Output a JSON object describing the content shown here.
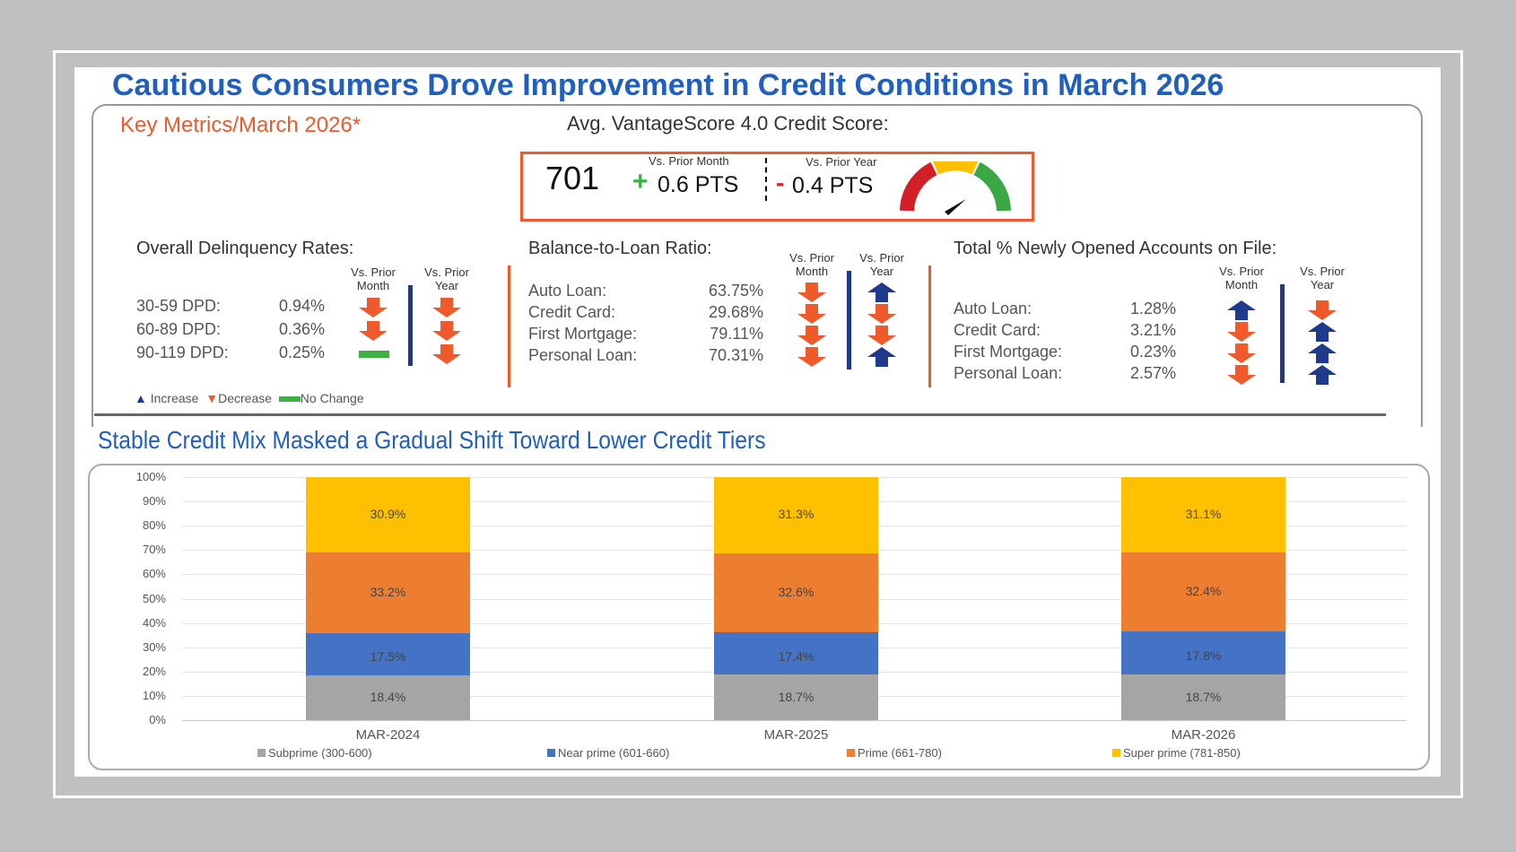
{
  "title": "Cautious Consumers Drove Improvement in Credit Conditions in March 2026",
  "key_metrics": "Key Metrics/March 2026*",
  "score": {
    "heading": "Avg. VantageScore 4.0 Credit Score:",
    "value": "701",
    "month_label": "Vs. Prior Month",
    "month_sign": "+",
    "month_value": "0.6 PTS",
    "year_label": "Vs. Prior Year",
    "year_sign": "-",
    "year_value": "0.4 PTS",
    "gauge_icon": "speedometer-gauge-icon"
  },
  "colors": {
    "up": "#1f3a8a",
    "down": "#f0592a",
    "nochange": "#3cb043",
    "accent": "#1f5fbf"
  },
  "delinquency": {
    "title": "Overall Delinquency Rates:",
    "col_month": "Vs. Prior Month",
    "col_year": "Vs. Prior Year",
    "rows": [
      {
        "label": "30-59 DPD:",
        "value": "0.94%",
        "month": "down",
        "year": "down"
      },
      {
        "label": "60-89 DPD:",
        "value": "0.36%",
        "month": "down",
        "year": "down"
      },
      {
        "label": "90-119 DPD:",
        "value": "0.25%",
        "month": "nochange",
        "year": "down"
      }
    ]
  },
  "balance": {
    "title": "Balance-to-Loan Ratio:",
    "col_month": "Vs. Prior Month",
    "col_year": "Vs. Prior Year",
    "rows": [
      {
        "label": "Auto Loan:",
        "value": "63.75%",
        "month": "down",
        "year": "up"
      },
      {
        "label": "Credit Card:",
        "value": "29.68%",
        "month": "down",
        "year": "down"
      },
      {
        "label": "First Mortgage:",
        "value": "79.11%",
        "month": "down",
        "year": "down"
      },
      {
        "label": "Personal Loan:",
        "value": "70.31%",
        "month": "down",
        "year": "up"
      }
    ]
  },
  "new_accounts": {
    "title": "Total % Newly Opened Accounts on File:",
    "col_month": "Vs. Prior Month",
    "col_year": "Vs. Prior Year",
    "rows": [
      {
        "label": "Auto Loan:",
        "value": "1.28%",
        "month": "up",
        "year": "down"
      },
      {
        "label": "Credit Card:",
        "value": "3.21%",
        "month": "down",
        "year": "up"
      },
      {
        "label": "First Mortgage:",
        "value": "0.23%",
        "month": "down",
        "year": "up"
      },
      {
        "label": "Personal Loan:",
        "value": "2.57%",
        "month": "down",
        "year": "up"
      }
    ]
  },
  "legend": {
    "increase": "Increase",
    "decrease": "Decrease",
    "nochange": "No Change"
  },
  "subtitle": "Stable Credit Mix Masked a Gradual Shift Toward Lower Credit Tiers",
  "chart_data": {
    "type": "bar",
    "stacked": true,
    "categories": [
      "MAR-2024",
      "MAR-2025",
      "MAR-2026"
    ],
    "series": [
      {
        "name": "Subprime (300-600)",
        "color": "#a5a5a5",
        "values": [
          18.4,
          18.7,
          18.7
        ]
      },
      {
        "name": "Near prime (601-660)",
        "color": "#4472c4",
        "values": [
          17.5,
          17.4,
          17.8
        ]
      },
      {
        "name": "Prime (661-780)",
        "color": "#ed7d31",
        "values": [
          33.2,
          32.6,
          32.4
        ]
      },
      {
        "name": "Super prime (781-850)",
        "color": "#ffc000",
        "values": [
          30.9,
          31.3,
          31.1
        ]
      }
    ],
    "yticks": [
      "0%",
      "10%",
      "20%",
      "30%",
      "40%",
      "50%",
      "60%",
      "70%",
      "80%",
      "90%",
      "100%"
    ],
    "ylim": [
      0,
      100
    ],
    "grid": true,
    "legend": "bottom"
  }
}
